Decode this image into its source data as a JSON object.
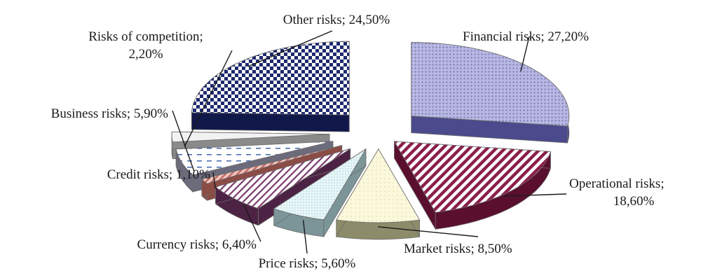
{
  "chart_data": {
    "type": "pie",
    "style": "3d-exploded",
    "label_format": "name; percent",
    "slices": [
      {
        "name": "Financial risks",
        "value": 27.2,
        "label": "Financial risks; 27,20%",
        "pattern": "dots",
        "color": "#a9a9d8",
        "dark": "#4a4a8c"
      },
      {
        "name": "Operational risks",
        "value": 18.6,
        "label": "Operational risks; 18,60%",
        "pattern": "diag",
        "color": "#8b1f4a",
        "dark": "#5a0f2e"
      },
      {
        "name": "Market risks",
        "value": 8.5,
        "label": "Market risks; 8,50%",
        "pattern": "light",
        "color": "#f7f1c8",
        "dark": "#8c8c6a"
      },
      {
        "name": "Price risks",
        "value": 5.6,
        "label": "Price risks; 5,60%",
        "pattern": "speck",
        "color": "#dff2f5",
        "dark": "#7c9598"
      },
      {
        "name": "Currency risks",
        "value": 6.4,
        "label": "Currency risks; 6,40%",
        "pattern": "diag2",
        "color": "#7a3a6a",
        "dark": "#4c2344"
      },
      {
        "name": "Credit risks",
        "value": 1.1,
        "label": "Credit risks; 1,10%",
        "pattern": "diag3",
        "color": "#d4847c",
        "dark": "#8c4c46"
      },
      {
        "name": "Business risks",
        "value": 5.9,
        "label": "Business risks; 5,90%",
        "pattern": "dash",
        "color": "#4f6fb0",
        "dark": "#6b6b7c"
      },
      {
        "name": "Risks of competition",
        "value": 2.2,
        "label": "Risks of competition; 2,20%",
        "pattern": "plain",
        "color": "#eeeeee",
        "dark": "#8a8a8a"
      },
      {
        "name": "Other risks",
        "value": 24.5,
        "label": "Other risks; 24,50%",
        "pattern": "check",
        "color": "#1e2a6e",
        "dark": "#11184a"
      }
    ]
  }
}
